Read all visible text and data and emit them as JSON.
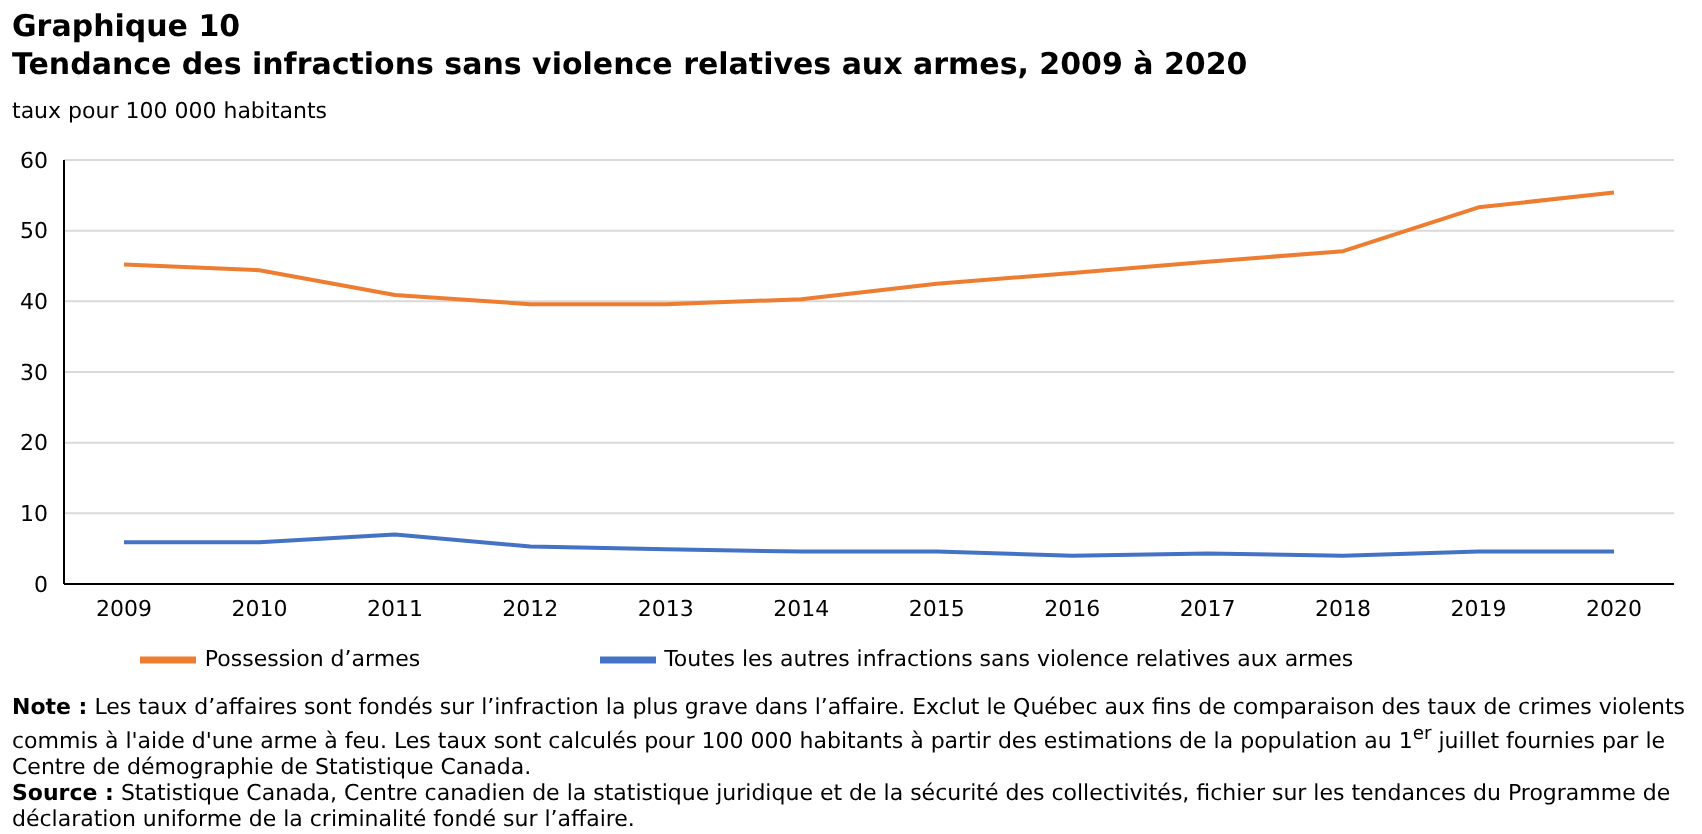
{
  "chart_data": {
    "type": "line",
    "title": "Graphique 10",
    "subtitle": "Tendance des infractions sans violence relatives aux armes, 2009 à 2020",
    "ylabel": "taux pour 100 000 habitants",
    "categories": [
      "2009",
      "2010",
      "2011",
      "2012",
      "2013",
      "2014",
      "2015",
      "2016",
      "2017",
      "2018",
      "2019",
      "2020"
    ],
    "series": [
      {
        "name": "Possession d’armes",
        "color": "#ed7d31",
        "values": [
          45.2,
          44.4,
          40.9,
          39.6,
          39.6,
          40.3,
          42.5,
          44.0,
          45.6,
          47.1,
          53.3,
          55.4
        ]
      },
      {
        "name": "Toutes les autres infractions sans violence relatives aux armes",
        "color": "#4472c4",
        "values": [
          5.9,
          5.9,
          7.0,
          5.3,
          4.9,
          4.6,
          4.6,
          4.0,
          4.3,
          4.0,
          4.6,
          4.6
        ]
      }
    ],
    "ylim": [
      0,
      60
    ],
    "yticks": [
      0,
      10,
      20,
      30,
      40,
      50,
      60
    ],
    "grid": "y",
    "legend": "bottom",
    "marker": "none",
    "line_style": "solid",
    "annotations": [
      "Note : Les taux d’affaires sont fondés sur l’infraction la plus grave dans l’affaire. Exclut le Québec aux fins de comparaison des taux de crimes violents commis à l'aide d'une arme à feu. Les taux sont calculés pour 100 000 habitants à partir des estimations de la population au 1$^{er}$ juillet fournies par le Centre de démographie de Statistique Canada.",
      "Source : Statistique Canada, Centre canadien de la statistique juridique et de la sécurité des collectivités, fichier sur les tendances du Programme de déclaration uniforme de la criminalité fondé sur l’affaire."
    ]
  }
}
